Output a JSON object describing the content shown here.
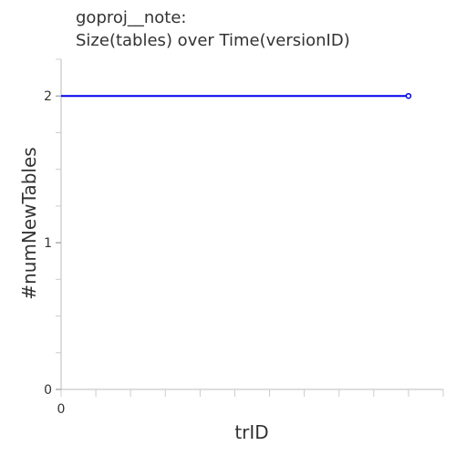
{
  "chart_data": {
    "type": "line",
    "title": [
      "goproj__note:",
      "Size(tables) over Time(versionID)"
    ],
    "xlabel": "trID",
    "ylabel": "#numNewTables",
    "xlim": [
      0,
      11
    ],
    "ylim": [
      0,
      2.25
    ],
    "x_ticks": [
      0
    ],
    "y_ticks": [
      0,
      1,
      2
    ],
    "grid": false,
    "series": [
      {
        "x": [
          0,
          10
        ],
        "y": [
          2,
          2
        ],
        "color": "#0000ee"
      }
    ]
  }
}
